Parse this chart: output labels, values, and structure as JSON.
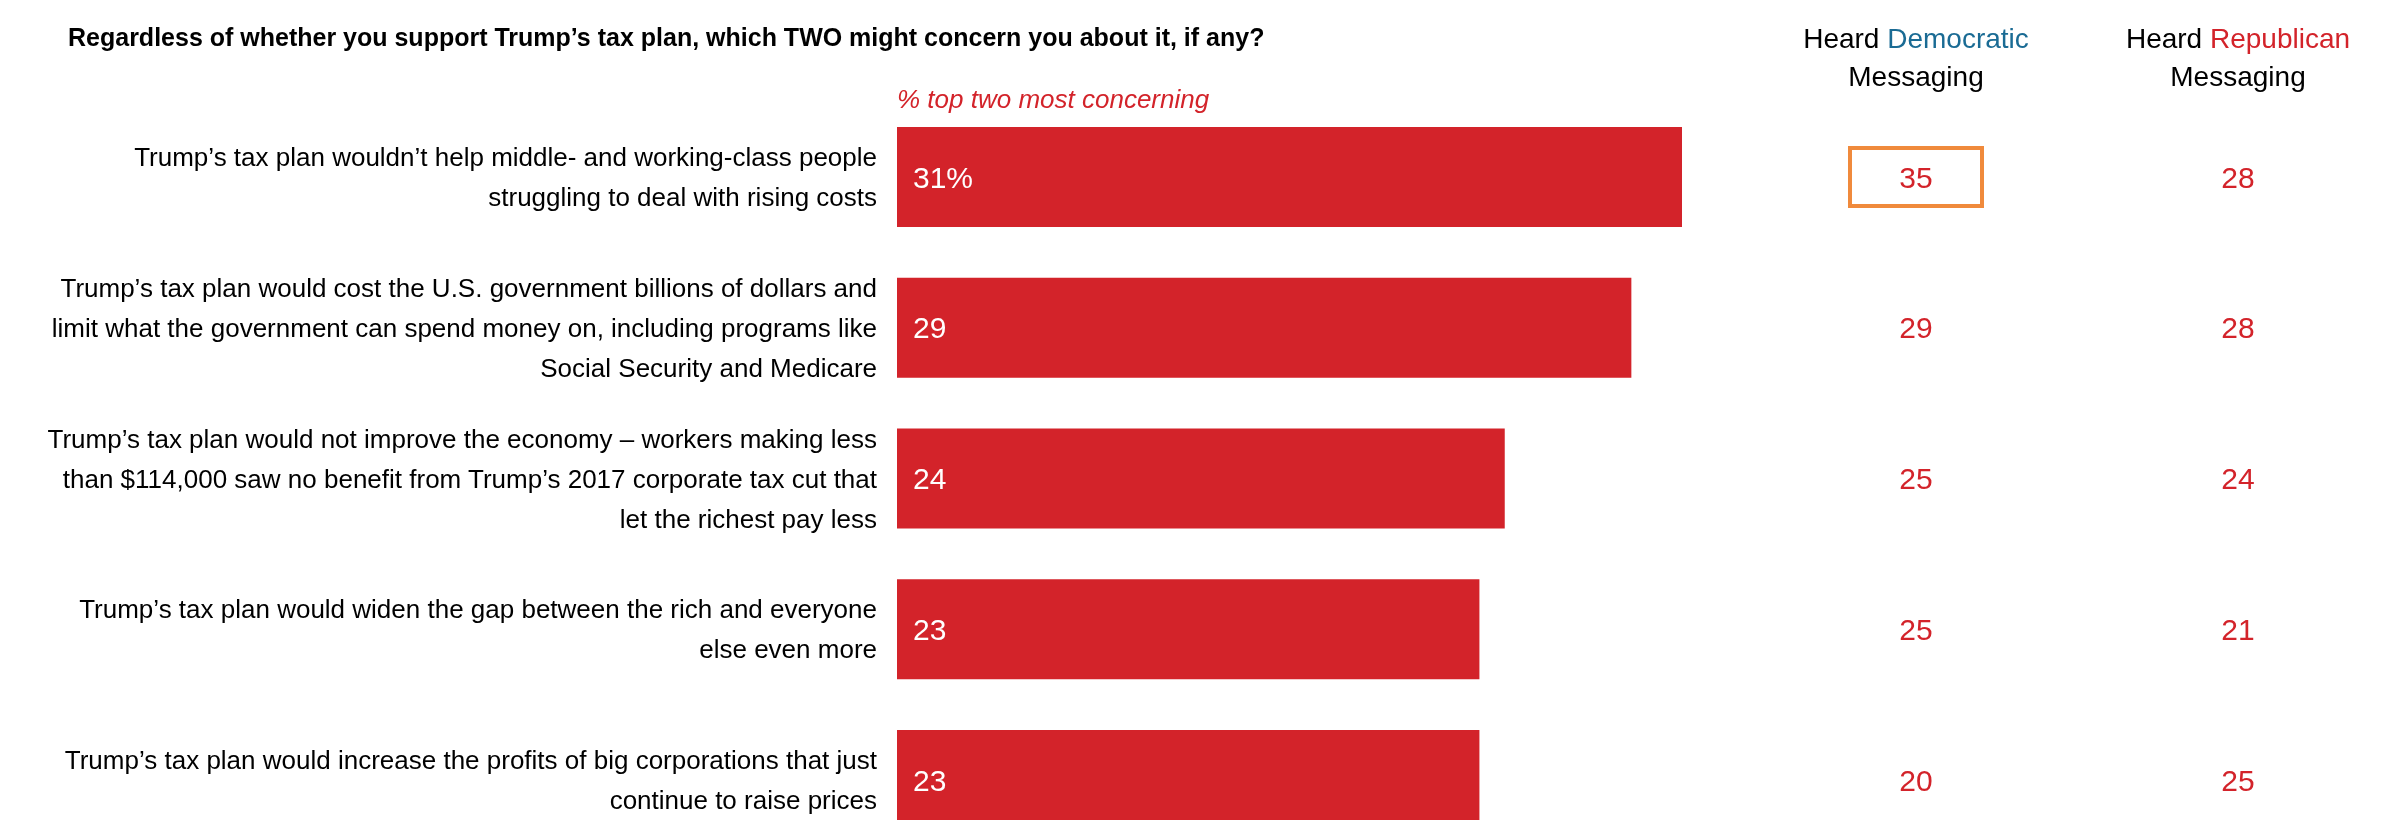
{
  "chart_data": [
    {
      "type": "bar",
      "orientation": "horizontal",
      "title": "Regardless of whether you support Trump’s tax plan, which TWO might concern you about it, if any?",
      "subtitle": "% top two most concerning",
      "categories": [
        "Trump’s tax plan wouldn’t help middle- and working-class people struggling to deal with rising costs",
        "Trump’s tax plan would cost the U.S. government billions of dollars and limit what the government can spend money on, including programs like Social Security and Medicare",
        "Trump’s tax plan would not improve the economy – workers making less than $114,000 saw no benefit from Trump’s 2017 corporate tax cut that let the richest pay less",
        "Trump’s tax plan would widen the gap between the rich and everyone else even more",
        "Trump’s tax plan would increase the profits of big corporations that just continue to raise prices"
      ],
      "values": [
        31,
        29,
        24,
        23,
        23
      ],
      "color": "#d3232a",
      "value_labels": [
        "31%",
        "29",
        "24",
        "23",
        "23"
      ]
    },
    {
      "type": "heatmap",
      "categories": [
        "Heard Democratic Messaging",
        "Heard Republican Messaging"
      ],
      "y_categories": [
        null,
        null,
        null,
        null,
        null
      ],
      "tick_labels": "x",
      "data_labels": true,
      "color": "#d3232a",
      "cells": [
        [
          35,
          28
        ],
        [
          29,
          28
        ],
        [
          25,
          24
        ],
        [
          25,
          21
        ],
        [
          20,
          25
        ]
      ]
    }
  ]
}
